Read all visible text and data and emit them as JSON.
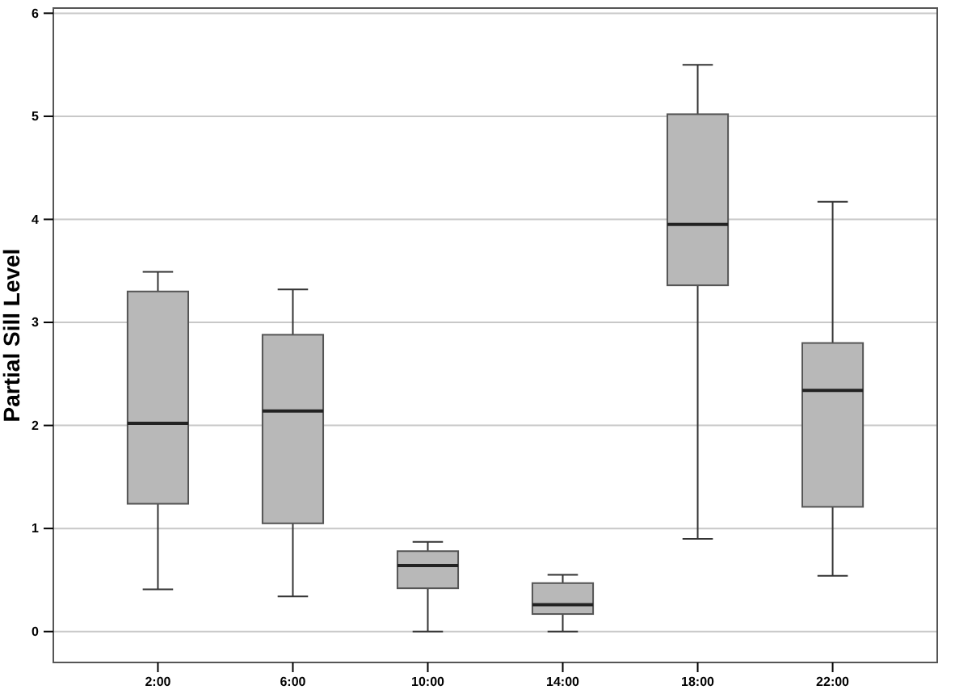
{
  "chart_data": {
    "type": "box",
    "ylabel": "Partial Sill Level",
    "categories": [
      "2:00",
      "6:00",
      "10:00",
      "14:00",
      "18:00",
      "22:00"
    ],
    "boxes": [
      {
        "low": 0.41,
        "q1": 1.24,
        "median": 2.02,
        "q3": 3.3,
        "high": 3.49
      },
      {
        "low": 0.34,
        "q1": 1.05,
        "median": 2.14,
        "q3": 2.88,
        "high": 3.32
      },
      {
        "low": 0,
        "q1": 0.42,
        "median": 0.64,
        "q3": 0.78,
        "high": 0.87
      },
      {
        "low": 0,
        "q1": 0.17,
        "median": 0.26,
        "q3": 0.47,
        "high": 0.55
      },
      {
        "low": 0.9,
        "q1": 3.36,
        "median": 3.95,
        "q3": 5.02,
        "high": 5.5
      },
      {
        "low": 0.54,
        "q1": 1.21,
        "median": 2.34,
        "q3": 2.8,
        "high": 4.17
      }
    ],
    "color": "#b8b8b8",
    "ylim": [
      -0.3,
      6.05
    ],
    "yticks": [
      0,
      1,
      2,
      3,
      4,
      5,
      6
    ],
    "grid": "y"
  }
}
